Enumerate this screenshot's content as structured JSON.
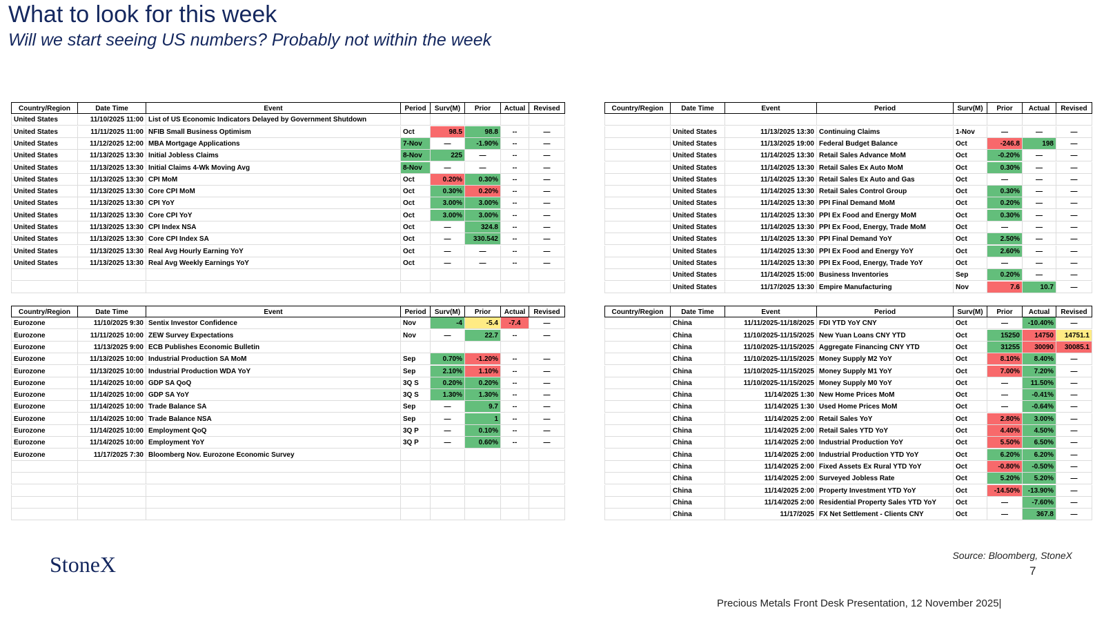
{
  "header": {
    "title": "What to look for this week",
    "subtitle": "Will we start seeing US numbers? Probably not within the week"
  },
  "tables": [
    {
      "header": [
        "Country/Region",
        "Date Time",
        "Event",
        "Period",
        "Surv(M)",
        "Prior",
        "Actual",
        "Revised"
      ],
      "rows": [
        [
          "United States",
          "11/10/2025 11:00",
          "List of US Economic Indicators Delayed by Government Shutdown",
          null,
          null,
          null,
          null,
          null
        ],
        [
          "United States",
          "11/11/2025 11:00",
          "NFIB Small Business Optimism",
          "Oct",
          {
            "text": "98.5",
            "fill": "#f8696b"
          },
          {
            "text": "98.8",
            "fill": "#63be7b"
          },
          "--",
          "—"
        ],
        [
          "United States",
          "11/12/2025 12:00",
          "MBA Mortgage Applications",
          {
            "text": "7-Nov",
            "fill": "#63be7b"
          },
          "—",
          {
            "text": "-1.90%",
            "fill": "#63be7b"
          },
          "--",
          "—"
        ],
        [
          "United States",
          "11/13/2025 13:30",
          "Initial Jobless Claims",
          {
            "text": "8-Nov",
            "fill": "#63be7b"
          },
          {
            "text": "225",
            "fill": "#63be7b"
          },
          "—",
          "--",
          "—"
        ],
        [
          "United States",
          "11/13/2025 13:30",
          "Initial Claims 4-Wk Moving Avg",
          {
            "text": "8-Nov",
            "fill": "#63be7b"
          },
          "—",
          "—",
          "--",
          "—"
        ],
        [
          "United States",
          "11/13/2025 13:30",
          "CPI MoM",
          "Oct",
          {
            "text": "0.20%",
            "fill": "#f8696b"
          },
          {
            "text": "0.30%",
            "fill": "#63be7b"
          },
          "--",
          "—"
        ],
        [
          "United States",
          "11/13/2025 13:30",
          "Core CPI MoM",
          "Oct",
          {
            "text": "0.30%",
            "fill": "#63be7b"
          },
          {
            "text": "0.20%",
            "fill": "#f8696b"
          },
          "--",
          "—"
        ],
        [
          "United States",
          "11/13/2025 13:30",
          "CPI YoY",
          "Oct",
          {
            "text": "3.00%",
            "fill": "#63be7b"
          },
          {
            "text": "3.00%",
            "fill": "#63be7b"
          },
          "--",
          "—"
        ],
        [
          "United States",
          "11/13/2025 13:30",
          "Core CPI YoY",
          "Oct",
          {
            "text": "3.00%",
            "fill": "#63be7b"
          },
          {
            "text": "3.00%",
            "fill": "#63be7b"
          },
          "--",
          "—"
        ],
        [
          "United States",
          "11/13/2025 13:30",
          "CPI Index NSA",
          "Oct",
          "—",
          {
            "text": "324.8",
            "fill": "#63be7b"
          },
          "--",
          "—"
        ],
        [
          "United States",
          "11/13/2025 13:30",
          "Core CPI Index SA",
          "Oct",
          "—",
          {
            "text": "330.542",
            "fill": "#63be7b"
          },
          "--",
          "—"
        ],
        [
          "United States",
          "11/13/2025 13:30",
          "Real Avg Hourly Earning YoY",
          "Oct",
          "—",
          "—",
          "--",
          "—"
        ],
        [
          "United States",
          "11/13/2025 13:30",
          "Real Avg Weekly Earnings YoY",
          "Oct",
          "—",
          "—",
          "--",
          "—"
        ],
        [
          null,
          null,
          null,
          null,
          null,
          null,
          null,
          null
        ],
        [
          null,
          null,
          null,
          null,
          null,
          null,
          null,
          null
        ]
      ]
    },
    {
      "header": [
        "Country/Region",
        "Date Time",
        "Event",
        "Period",
        "Surv(M)",
        "Prior",
        "Actual",
        "Revised"
      ],
      "rows": [
        [
          null,
          null,
          null,
          null,
          null,
          null,
          null,
          null
        ],
        [
          null,
          "United States",
          "11/13/2025 13:30",
          "Continuing Claims",
          "1-Nov",
          "—",
          "—",
          "—"
        ],
        [
          null,
          "United States",
          "11/13/2025 19:00",
          "Federal Budget Balance",
          "Oct",
          {
            "text": "-246.8",
            "fill": "#f8696b"
          },
          {
            "text": "198",
            "fill": "#63be7b"
          },
          "—"
        ],
        [
          null,
          "United States",
          "11/14/2025 13:30",
          "Retail Sales Advance MoM",
          "Oct",
          {
            "text": "-0.20%",
            "fill": "#63be7b"
          },
          "—",
          "—"
        ],
        [
          null,
          "United States",
          "11/14/2025 13:30",
          "Retail Sales Ex Auto MoM",
          "Oct",
          {
            "text": "0.30%",
            "fill": "#63be7b"
          },
          "—",
          "—"
        ],
        [
          null,
          "United States",
          "11/14/2025 13:30",
          "Retail Sales Ex Auto and Gas",
          "Oct",
          "—",
          "—",
          "—"
        ],
        [
          null,
          "United States",
          "11/14/2025 13:30",
          "Retail Sales Control Group",
          "Oct",
          {
            "text": "0.30%",
            "fill": "#63be7b"
          },
          "—",
          "—"
        ],
        [
          null,
          "United States",
          "11/14/2025 13:30",
          "PPI Final Demand MoM",
          "Oct",
          {
            "text": "0.20%",
            "fill": "#63be7b"
          },
          "—",
          "—"
        ],
        [
          null,
          "United States",
          "11/14/2025 13:30",
          "PPI Ex Food and Energy MoM",
          "Oct",
          {
            "text": "0.30%",
            "fill": "#63be7b"
          },
          "—",
          "—"
        ],
        [
          null,
          "United States",
          "11/14/2025 13:30",
          "PPI Ex Food, Energy, Trade MoM",
          "Oct",
          "—",
          "—",
          "—"
        ],
        [
          null,
          "United States",
          "11/14/2025 13:30",
          "PPI Final Demand YoY",
          "Oct",
          {
            "text": "2.50%",
            "fill": "#63be7b"
          },
          "—",
          "—"
        ],
        [
          null,
          "United States",
          "11/14/2025 13:30",
          "PPI Ex Food and Energy YoY",
          "Oct",
          {
            "text": "2.60%",
            "fill": "#63be7b"
          },
          "—",
          "—"
        ],
        [
          null,
          "United States",
          "11/14/2025 13:30",
          "PPI Ex Food, Energy, Trade YoY",
          "Oct",
          "—",
          "—",
          "—"
        ],
        [
          null,
          "United States",
          "11/14/2025 15:00",
          "Business Inventories",
          "Sep",
          {
            "text": "0.20%",
            "fill": "#63be7b"
          },
          "—",
          "—"
        ],
        [
          null,
          "United States",
          "11/17/2025 13:30",
          "Empire Manufacturing",
          "Nov",
          {
            "text": "7.6",
            "fill": "#f8696b"
          },
          {
            "text": "10.7",
            "fill": "#63be7b"
          },
          "—"
        ]
      ]
    },
    {
      "header": [
        "Country/Region",
        "Date Time",
        "Event",
        "Period",
        "Surv(M)",
        "Prior",
        "Actual",
        "Revised"
      ],
      "rows": [
        [
          "Eurozone",
          "11/10/2025 9:30",
          "Sentix Investor Confidence",
          "Nov",
          {
            "text": "-4",
            "fill": "#63be7b"
          },
          {
            "text": "-5.4",
            "fill": "#ffeb84"
          },
          {
            "text": "-7.4",
            "fill": "#f8696b"
          },
          "—"
        ],
        [
          "Eurozone",
          "11/11/2025 10:00",
          "ZEW Survey Expectations",
          "Nov",
          "—",
          {
            "text": "22.7",
            "fill": "#63be7b"
          },
          "--",
          "—"
        ],
        [
          "Eurozone",
          "11/13/2025 9:00",
          "ECB Publishes Economic Bulletin",
          null,
          null,
          null,
          null,
          null
        ],
        [
          "Eurozone",
          "11/13/2025 10:00",
          "Industrial Production SA MoM",
          "Sep",
          {
            "text": "0.70%",
            "fill": "#63be7b"
          },
          {
            "text": "-1.20%",
            "fill": "#f8696b"
          },
          "--",
          "—"
        ],
        [
          "Eurozone",
          "11/13/2025 10:00",
          "Industrial Production WDA YoY",
          "Sep",
          {
            "text": "2.10%",
            "fill": "#63be7b"
          },
          {
            "text": "1.10%",
            "fill": "#f8696b"
          },
          "--",
          "—"
        ],
        [
          "Eurozone",
          "11/14/2025 10:00",
          "GDP SA QoQ",
          "3Q S",
          {
            "text": "0.20%",
            "fill": "#63be7b"
          },
          {
            "text": "0.20%",
            "fill": "#63be7b"
          },
          "--",
          "—"
        ],
        [
          "Eurozone",
          "11/14/2025 10:00",
          "GDP SA YoY",
          "3Q S",
          {
            "text": "1.30%",
            "fill": "#63be7b"
          },
          {
            "text": "1.30%",
            "fill": "#63be7b"
          },
          "--",
          "—"
        ],
        [
          "Eurozone",
          "11/14/2025 10:00",
          "Trade Balance SA",
          "Sep",
          "—",
          {
            "text": "9.7",
            "fill": "#63be7b"
          },
          "--",
          "—"
        ],
        [
          "Eurozone",
          "11/14/2025 10:00",
          "Trade Balance NSA",
          "Sep",
          "—",
          {
            "text": "1",
            "fill": "#63be7b"
          },
          "--",
          "—"
        ],
        [
          "Eurozone",
          "11/14/2025 10:00",
          "Employment QoQ",
          "3Q P",
          "—",
          {
            "text": "0.10%",
            "fill": "#63be7b"
          },
          "--",
          "—"
        ],
        [
          "Eurozone",
          "11/14/2025 10:00",
          "Employment YoY",
          "3Q P",
          "—",
          {
            "text": "0.60%",
            "fill": "#63be7b"
          },
          "--",
          "—"
        ],
        [
          "Eurozone",
          "11/17/2025 7:30",
          "Bloomberg Nov. Eurozone Economic Survey",
          null,
          null,
          null,
          null,
          null
        ],
        [
          null,
          null,
          null,
          null,
          null,
          null,
          null,
          null
        ],
        [
          null,
          null,
          null,
          null,
          null,
          null,
          null,
          null
        ],
        [
          null,
          null,
          null,
          null,
          null,
          null,
          null,
          null
        ],
        [
          null,
          null,
          null,
          null,
          null,
          null,
          null,
          null
        ],
        [
          null,
          null,
          null,
          null,
          null,
          null,
          null,
          null
        ]
      ]
    },
    {
      "header": [
        "Country/Region",
        "Date Time",
        "Event",
        "Period",
        "Surv(M)",
        "Prior",
        "Actual",
        "Revised"
      ],
      "rows": [
        [
          null,
          "China",
          "11/11/2025-11/18/2025",
          "FDI YTD YoY CNY",
          "Oct",
          "—",
          {
            "text": "-10.40%",
            "fill": "#63be7b"
          },
          "—"
        ],
        [
          null,
          "China",
          "11/10/2025-11/15/2025",
          "New Yuan Loans CNY YTD",
          "Oct",
          {
            "text": "15250",
            "fill": "#63be7b"
          },
          {
            "text": "14750",
            "fill": "#f8696b"
          },
          {
            "text": "14751.1",
            "fill": "#ffeb84"
          }
        ],
        [
          null,
          "China",
          "11/10/2025-11/15/2025",
          "Aggregate Financing CNY YTD",
          "Oct",
          {
            "text": "31255",
            "fill": "#63be7b"
          },
          {
            "text": "30090",
            "fill": "#f8696b"
          },
          {
            "text": "30085.1",
            "fill": "#f8696b"
          }
        ],
        [
          null,
          "China",
          "11/10/2025-11/15/2025",
          "Money Supply M2 YoY",
          "Oct",
          {
            "text": "8.10%",
            "fill": "#f8696b"
          },
          {
            "text": "8.40%",
            "fill": "#63be7b"
          },
          "—"
        ],
        [
          null,
          "China",
          "11/10/2025-11/15/2025",
          "Money Supply M1 YoY",
          "Oct",
          {
            "text": "7.00%",
            "fill": "#f8696b"
          },
          {
            "text": "7.20%",
            "fill": "#63be7b"
          },
          "—"
        ],
        [
          null,
          "China",
          "11/10/2025-11/15/2025",
          "Money Supply M0 YoY",
          "Oct",
          "—",
          {
            "text": "11.50%",
            "fill": "#63be7b"
          },
          "—"
        ],
        [
          null,
          "China",
          "11/14/2025 1:30",
          "New Home Prices MoM",
          "Oct",
          "—",
          {
            "text": "-0.41%",
            "fill": "#63be7b"
          },
          "—"
        ],
        [
          null,
          "China",
          "11/14/2025 1:30",
          "Used Home Prices MoM",
          "Oct",
          "—",
          {
            "text": "-0.64%",
            "fill": "#63be7b"
          },
          "—"
        ],
        [
          null,
          "China",
          "11/14/2025 2:00",
          "Retail Sales YoY",
          "Oct",
          {
            "text": "2.80%",
            "fill": "#f8696b"
          },
          {
            "text": "3.00%",
            "fill": "#63be7b"
          },
          "—"
        ],
        [
          null,
          "China",
          "11/14/2025 2:00",
          "Retail Sales YTD YoY",
          "Oct",
          {
            "text": "4.40%",
            "fill": "#f8696b"
          },
          {
            "text": "4.50%",
            "fill": "#63be7b"
          },
          "—"
        ],
        [
          null,
          "China",
          "11/14/2025 2:00",
          "Industrial Production YoY",
          "Oct",
          {
            "text": "5.50%",
            "fill": "#f8696b"
          },
          {
            "text": "6.50%",
            "fill": "#63be7b"
          },
          "—"
        ],
        [
          null,
          "China",
          "11/14/2025 2:00",
          "Industrial Production YTD YoY",
          "Oct",
          {
            "text": "6.20%",
            "fill": "#63be7b"
          },
          {
            "text": "6.20%",
            "fill": "#63be7b"
          },
          "—"
        ],
        [
          null,
          "China",
          "11/14/2025 2:00",
          "Fixed Assets Ex Rural YTD YoY",
          "Oct",
          {
            "text": "-0.80%",
            "fill": "#f8696b"
          },
          {
            "text": "-0.50%",
            "fill": "#63be7b"
          },
          "—"
        ],
        [
          null,
          "China",
          "11/14/2025 2:00",
          "Surveyed Jobless Rate",
          "Oct",
          {
            "text": "5.20%",
            "fill": "#63be7b"
          },
          {
            "text": "5.20%",
            "fill": "#63be7b"
          },
          "—"
        ],
        [
          null,
          "China",
          "11/14/2025 2:00",
          "Property Investment YTD YoY",
          "Oct",
          {
            "text": "-14.50%",
            "fill": "#f8696b"
          },
          {
            "text": "-13.90%",
            "fill": "#63be7b"
          },
          "—"
        ],
        [
          null,
          "China",
          "11/14/2025 2:00",
          "Residential Property Sales YTD YoY",
          "Oct",
          "—",
          {
            "text": "-7.60%",
            "fill": "#63be7b"
          },
          "—"
        ],
        [
          null,
          "China",
          "11/17/2025",
          "FX Net Settlement - Clients CNY",
          "Oct",
          "—",
          {
            "text": "367.8",
            "fill": "#63be7b"
          },
          "—"
        ]
      ]
    }
  ],
  "footer": {
    "logo": "StoneX",
    "source": "Source: Bloomberg, StoneX",
    "page": "7",
    "presentation": "Precious Metals Front Desk Presentation, 12 November 2025|"
  }
}
